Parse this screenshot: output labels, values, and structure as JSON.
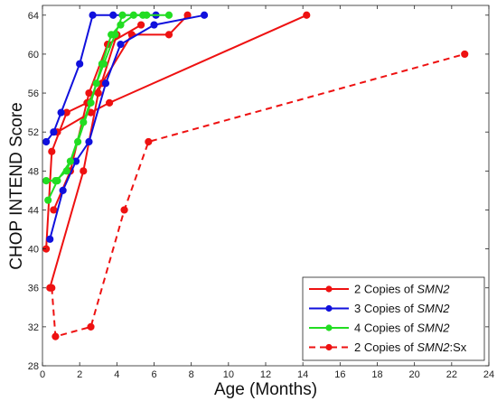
{
  "chart_data": {
    "type": "line",
    "xlabel": "Age (Months)",
    "ylabel": "CHOP INTEND Score",
    "xlim": [
      0,
      24
    ],
    "ylim": [
      28,
      65
    ],
    "xticks": [
      0,
      2,
      4,
      6,
      8,
      10,
      12,
      14,
      16,
      18,
      20,
      22,
      24
    ],
    "yticks": [
      28,
      32,
      36,
      40,
      44,
      48,
      52,
      56,
      60,
      64
    ],
    "legend_position": "bottom-right",
    "legend": [
      {
        "prefix": "2 Copies of ",
        "italic": "SMN2",
        "suffix": "",
        "color": "#ee1111",
        "dashed": false
      },
      {
        "prefix": "3 Copies of ",
        "italic": "SMN2",
        "suffix": "",
        "color": "#1010dd",
        "dashed": false
      },
      {
        "prefix": "4 Copies of ",
        "italic": "SMN2",
        "suffix": "",
        "color": "#22dd22",
        "dashed": false
      },
      {
        "prefix": "2 Copies of ",
        "italic": "SMN2",
        "suffix": ":Sx",
        "color": "#ee1111",
        "dashed": true
      }
    ],
    "series": [
      {
        "group": "2 copies",
        "color": "#ee1111",
        "dashed": false,
        "x": [
          0.2,
          0.5,
          1.3,
          2.4,
          3.2,
          4.8,
          6.8,
          7.8
        ],
        "y": [
          40,
          50,
          54,
          55,
          57,
          62,
          62,
          64
        ]
      },
      {
        "group": "2 copies",
        "color": "#ee1111",
        "dashed": false,
        "x": [
          0.6,
          1.5,
          2.5,
          3.5,
          5.3
        ],
        "y": [
          44,
          48,
          56,
          61,
          63
        ]
      },
      {
        "group": "2 copies",
        "color": "#ee1111",
        "dashed": false,
        "x": [
          0.4,
          2.2,
          3.0,
          4.0
        ],
        "y": [
          36,
          48,
          56,
          62
        ]
      },
      {
        "group": "2 copies",
        "color": "#ee1111",
        "dashed": false,
        "x": [
          0.8,
          2.6,
          3.6,
          14.2
        ],
        "y": [
          52,
          54,
          55,
          64
        ]
      },
      {
        "group": "3 copies",
        "color": "#1010dd",
        "dashed": false,
        "x": [
          0.2,
          0.6,
          1.0,
          2.0,
          2.7,
          3.8,
          6.1
        ],
        "y": [
          51,
          52,
          54,
          59,
          64,
          64,
          64
        ]
      },
      {
        "group": "3 copies",
        "color": "#1010dd",
        "dashed": false,
        "x": [
          0.4,
          1.1,
          1.8,
          2.5,
          3.4,
          4.2,
          6.0,
          8.7
        ],
        "y": [
          41,
          46,
          49,
          51,
          57,
          61,
          63,
          64
        ]
      },
      {
        "group": "4 copies",
        "color": "#22dd22",
        "dashed": false,
        "x": [
          0.3,
          0.8,
          1.5,
          2.2,
          2.9,
          3.3,
          3.9,
          4.3,
          5.4,
          6.8
        ],
        "y": [
          45,
          47,
          49,
          53,
          57,
          59,
          62,
          64,
          64,
          64
        ]
      },
      {
        "group": "4 copies",
        "color": "#22dd22",
        "dashed": false,
        "x": [
          0.2,
          0.7,
          1.3,
          1.9,
          2.6,
          3.2,
          3.7,
          4.2,
          4.9,
          5.6
        ],
        "y": [
          47,
          47,
          48,
          51,
          55,
          59,
          62,
          63,
          64,
          64
        ]
      },
      {
        "group": "2 copies:Sx",
        "color": "#ee1111",
        "dashed": true,
        "x": [
          0.5,
          0.7,
          2.6,
          4.4,
          5.7,
          22.7
        ],
        "y": [
          36,
          31,
          32,
          44,
          51,
          60
        ]
      }
    ]
  }
}
